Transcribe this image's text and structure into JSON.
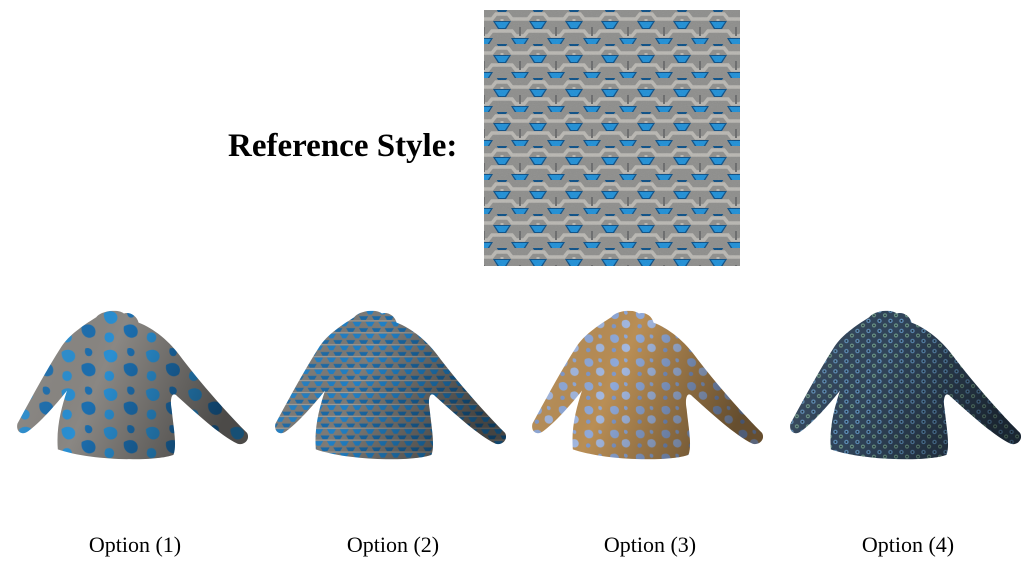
{
  "reference": {
    "label": "Reference Style:",
    "pattern_colors": {
      "base": "#8e8e8c",
      "light": "#b9b7b2",
      "dark": "#5c5e60",
      "accent": "#1f8fd6",
      "accent_dark": "#0b4f86"
    }
  },
  "options": [
    {
      "caption": "Option (1)",
      "base": "#8a8783",
      "accent": "#2a8fd2",
      "style": "large-blobs"
    },
    {
      "caption": "Option (2)",
      "base": "#7d7b77",
      "accent": "#2080c6",
      "style": "hex-tiles"
    },
    {
      "caption": "Option (3)",
      "base": "#b98e55",
      "accent": "#8fa9d9",
      "style": "swirl-blobs"
    },
    {
      "caption": "Option (4)",
      "base": "#30445a",
      "accent": "#5f8fb8",
      "style": "dots"
    }
  ]
}
